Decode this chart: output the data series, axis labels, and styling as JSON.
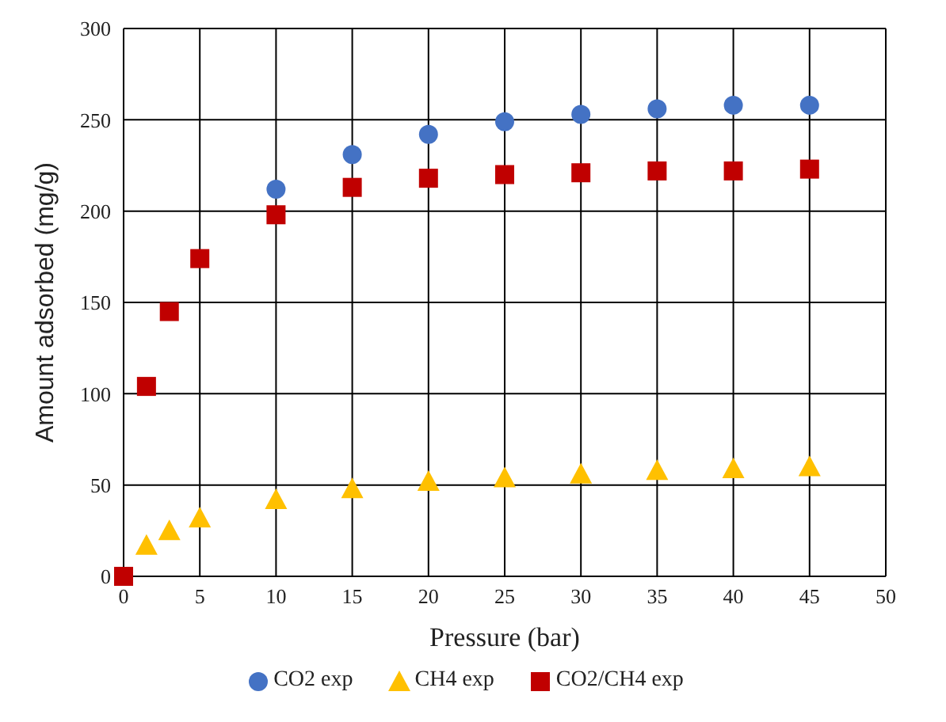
{
  "chart_data": {
    "type": "scatter",
    "xlabel": "Pressure (bar)",
    "ylabel": "Amount adsorbed (mg/g)",
    "xlim": [
      0,
      50
    ],
    "xticks": [
      0,
      5,
      10,
      15,
      20,
      25,
      30,
      35,
      40,
      45,
      50
    ],
    "ylim": [
      0,
      300
    ],
    "yticks": [
      0,
      50,
      100,
      150,
      200,
      250,
      300
    ],
    "grid": true,
    "legend": "bottom",
    "series": [
      {
        "name": "CO2 exp",
        "color": "#4472c4",
        "marker": "circle",
        "x": [
          10,
          15,
          20,
          25,
          30,
          35,
          40,
          45
        ],
        "values": [
          212,
          231,
          242,
          249,
          253,
          256,
          258,
          258
        ]
      },
      {
        "name": "CH4 exp",
        "color": "#ffc000",
        "marker": "triangle",
        "x": [
          1.5,
          3,
          5,
          10,
          15,
          20,
          25,
          30,
          35,
          40,
          45
        ],
        "values": [
          17,
          25,
          32,
          42,
          48,
          52,
          54,
          56,
          58,
          59,
          60
        ]
      },
      {
        "name": "CO2/CH4 exp",
        "color": "#c00000",
        "marker": "square",
        "x": [
          0,
          1.5,
          3,
          5,
          10,
          15,
          20,
          25,
          30,
          35,
          40,
          45
        ],
        "values": [
          0,
          104,
          145,
          174,
          198,
          213,
          218,
          220,
          221,
          222,
          222,
          223
        ]
      }
    ]
  }
}
